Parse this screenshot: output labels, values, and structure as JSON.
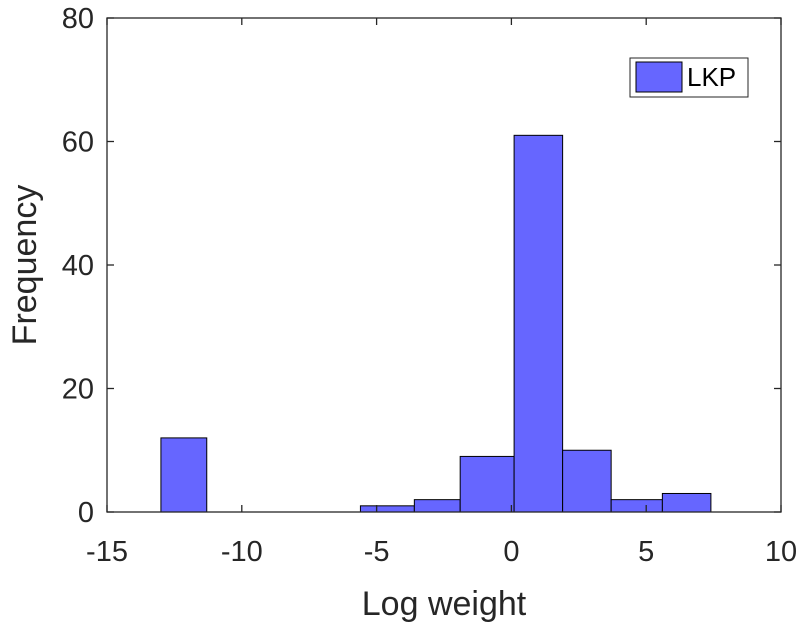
{
  "chart_data": {
    "type": "histogram",
    "xlabel": "Log weight",
    "ylabel": "Frequency",
    "xlim": [
      -15,
      10
    ],
    "ylim": [
      0,
      80
    ],
    "xticks": [
      -15,
      -10,
      -5,
      0,
      5,
      10
    ],
    "yticks": [
      0,
      20,
      40,
      60,
      80
    ],
    "grid": false,
    "legend": {
      "position": "top-right",
      "entries": [
        "LKP"
      ]
    },
    "series": [
      {
        "name": "LKP",
        "color": "#6666FF",
        "edge_color": "#000000",
        "bins": [
          {
            "x0": -13.0,
            "x1": -11.3,
            "count": 12
          },
          {
            "x0": -11.3,
            "x1": -9.6,
            "count": 0
          },
          {
            "x0": -9.6,
            "x1": -7.9,
            "count": 0
          },
          {
            "x0": -7.9,
            "x1": -6.2,
            "count": 0
          },
          {
            "x0": -5.6,
            "x1": -5.0,
            "count": 1
          },
          {
            "x0": -5.0,
            "x1": -3.6,
            "count": 1
          },
          {
            "x0": -3.6,
            "x1": -1.9,
            "count": 2
          },
          {
            "x0": -1.9,
            "x1": 0.1,
            "count": 9
          },
          {
            "x0": 0.1,
            "x1": 1.9,
            "count": 61
          },
          {
            "x0": 1.9,
            "x1": 3.7,
            "count": 10
          },
          {
            "x0": 3.7,
            "x1": 5.6,
            "count": 2
          },
          {
            "x0": 5.6,
            "x1": 7.4,
            "count": 3
          }
        ]
      }
    ]
  }
}
